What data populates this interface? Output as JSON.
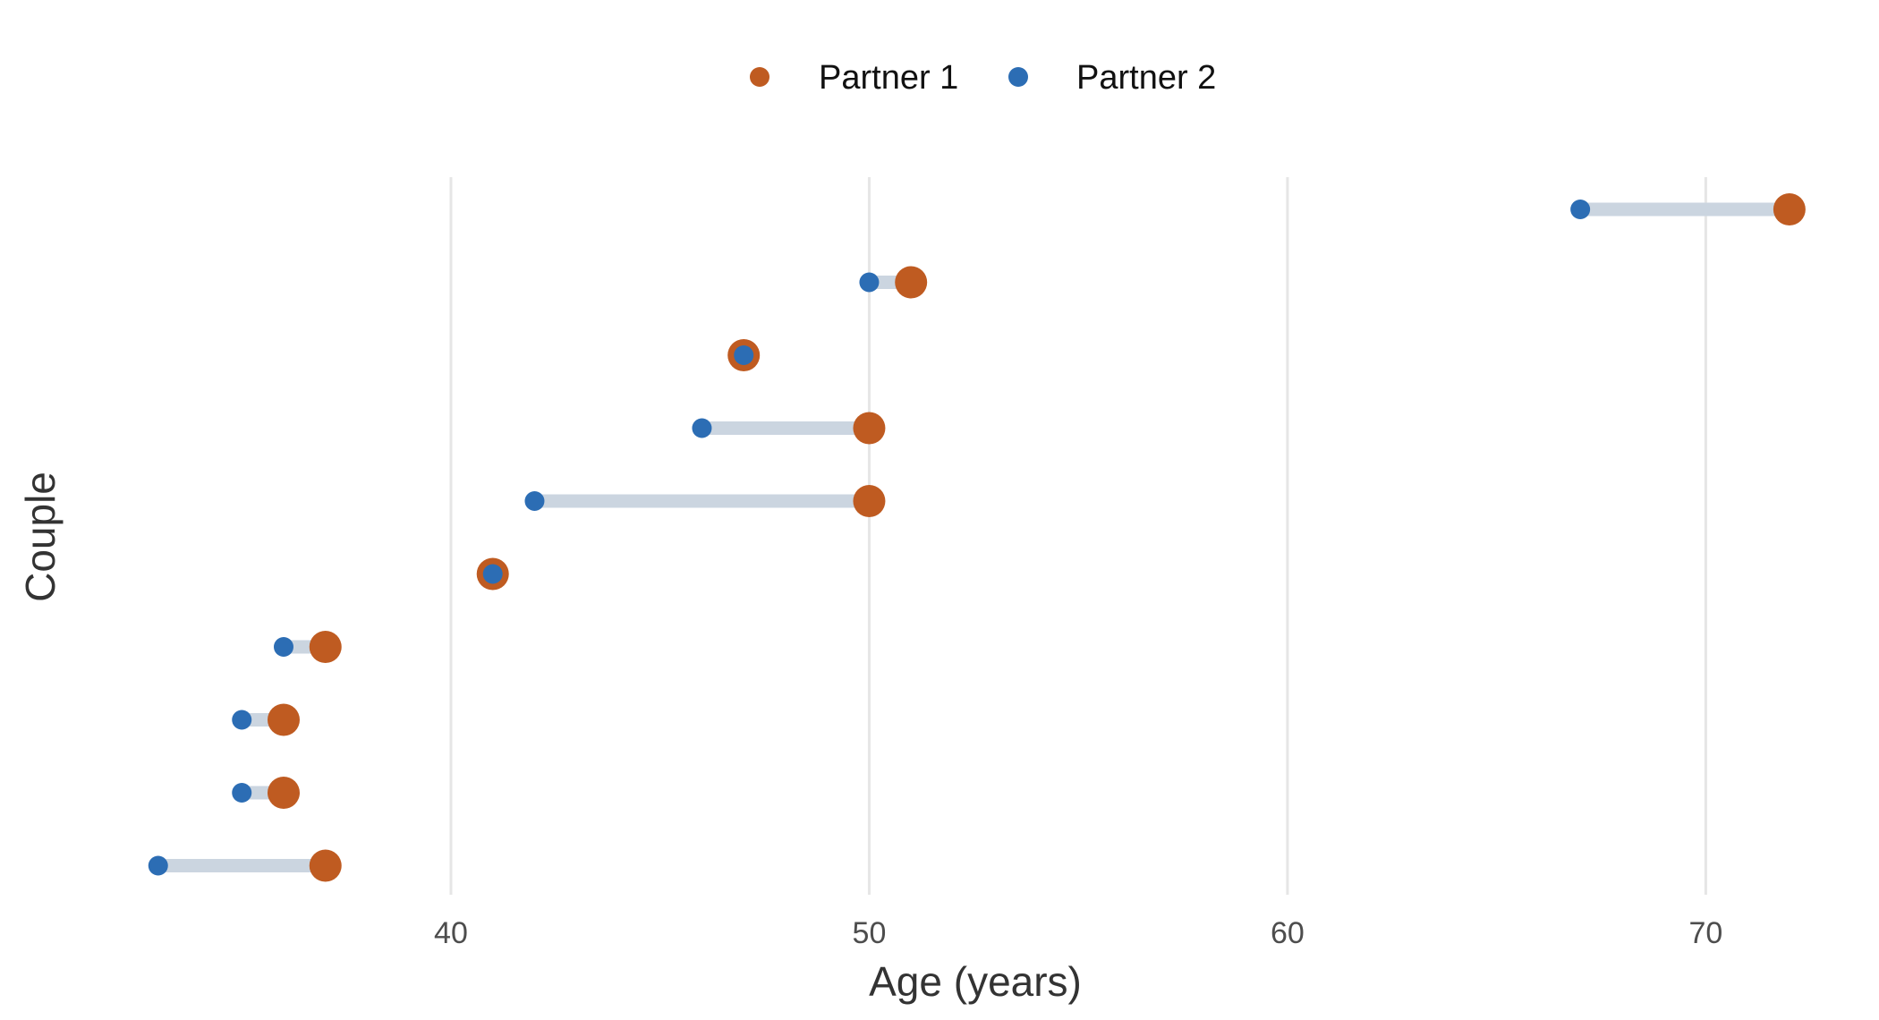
{
  "chart_data": {
    "type": "scatter",
    "subtype": "dumbbell",
    "title": "",
    "xlabel": "Age (years)",
    "ylabel": "Couple",
    "xlim": [
      32,
      73.5
    ],
    "xticks": [
      40,
      50,
      60,
      70
    ],
    "grid": {
      "vertical_major": true,
      "horizontal": false
    },
    "legend": {
      "placement": "top-center"
    },
    "series": [
      {
        "name": "Partner 1",
        "color": "#BF5B21",
        "values": [
          72,
          51,
          47,
          50,
          50,
          41,
          37,
          36,
          36,
          37
        ]
      },
      {
        "name": "Partner 2",
        "color": "#2C6DB4",
        "values": [
          67,
          50,
          47,
          46,
          42,
          41,
          36,
          35,
          35,
          33
        ]
      }
    ],
    "connector_color": "#CBD5E0",
    "grid_color": "#E6E6E6"
  }
}
